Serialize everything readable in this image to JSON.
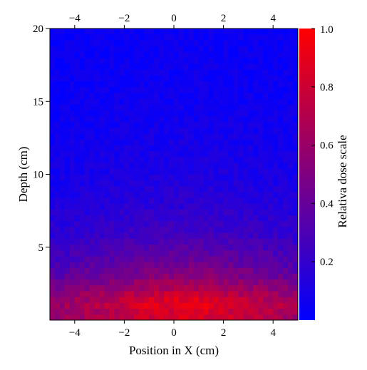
{
  "chart_data": {
    "type": "heatmap",
    "title": "",
    "xlabel": "Position in X (cm)",
    "ylabel": "Depth (cm)",
    "colorbar_label": "Relativa dose scale",
    "xlim": [
      -5,
      5
    ],
    "ylim": [
      0,
      20
    ],
    "x_ticks": [
      -4,
      -2,
      0,
      2,
      4
    ],
    "x_tick_labels": [
      "−4",
      "−2",
      "0",
      "2",
      "4"
    ],
    "y_ticks": [
      5,
      10,
      15,
      20
    ],
    "y_tick_labels": [
      "5",
      "10",
      "15",
      "20"
    ],
    "colorbar_range": [
      0,
      1
    ],
    "colorbar_ticks": [
      0.2,
      0.4,
      0.6,
      0.8,
      1.0
    ],
    "colorbar_tick_labels": [
      "0.2",
      "0.4",
      "0.6",
      "0.8",
      "1.0"
    ],
    "colormap": [
      "#0000ff",
      "#ff0000"
    ],
    "grid": false,
    "colorbar_placement": "right",
    "grid_shape": [
      50,
      50
    ],
    "depth_profile": {
      "depth_cm": [
        0.5,
        1,
        1.5,
        2,
        3,
        4,
        5,
        6,
        8,
        10,
        12,
        15,
        20
      ],
      "relative_dose": [
        0.85,
        0.9,
        0.85,
        0.72,
        0.55,
        0.42,
        0.33,
        0.26,
        0.17,
        0.12,
        0.09,
        0.06,
        0.04
      ]
    },
    "lateral_falloff_sigma_cm": 3.2,
    "peak_center_x_cm": 0.5,
    "peak_depth_cm": 1.0
  }
}
